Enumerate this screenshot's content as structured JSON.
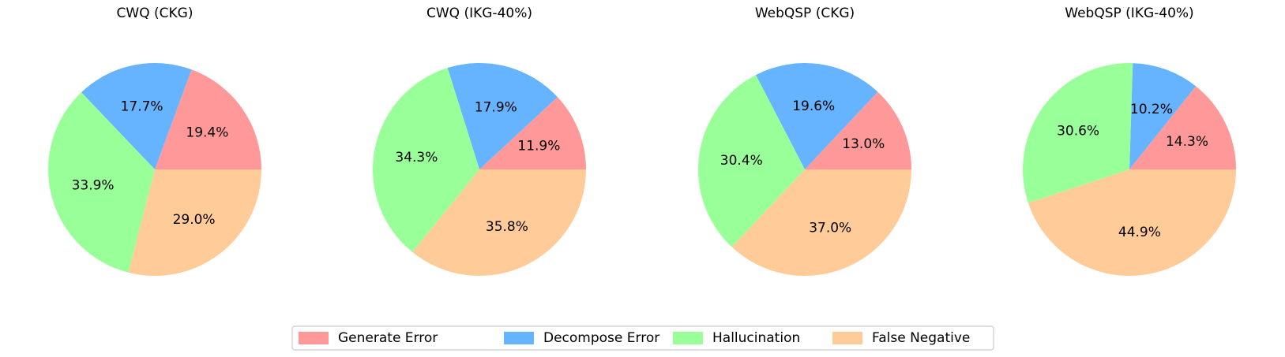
{
  "chart_data": [
    {
      "type": "pie",
      "title": "CWQ (CKG)",
      "categories": [
        "Generate Error",
        "Decompose Error",
        "Hallucination",
        "False Negative"
      ],
      "values": [
        19.4,
        17.7,
        33.9,
        29.0
      ],
      "labels": [
        "19.4%",
        "17.7%",
        "33.9%",
        "29.0%"
      ]
    },
    {
      "type": "pie",
      "title": "CWQ (IKG-40%)",
      "categories": [
        "Generate Error",
        "Decompose Error",
        "Hallucination",
        "False Negative"
      ],
      "values": [
        11.9,
        17.9,
        34.3,
        35.8
      ],
      "labels": [
        "11.9%",
        "17.9%",
        "34.3%",
        "35.8%"
      ]
    },
    {
      "type": "pie",
      "title": "WebQSP (CKG)",
      "categories": [
        "Generate Error",
        "Decompose Error",
        "Hallucination",
        "False Negative"
      ],
      "values": [
        13.0,
        19.6,
        30.4,
        37.0
      ],
      "labels": [
        "13.0%",
        "19.6%",
        "30.4%",
        "37.0%"
      ]
    },
    {
      "type": "pie",
      "title": "WebQSP (IKG-40%)",
      "categories": [
        "Generate Error",
        "Decompose Error",
        "Hallucination",
        "False Negative"
      ],
      "values": [
        14.3,
        10.2,
        30.6,
        44.9
      ],
      "labels": [
        "14.3%",
        "10.2%",
        "30.6%",
        "44.9%"
      ]
    }
  ],
  "legend": {
    "items": [
      "Generate Error",
      "Decompose Error",
      "Hallucination",
      "False Negative"
    ],
    "placement": "bottom-center"
  },
  "colors": [
    "#ff9999",
    "#66b3ff",
    "#99ff99",
    "#ffcc99"
  ]
}
